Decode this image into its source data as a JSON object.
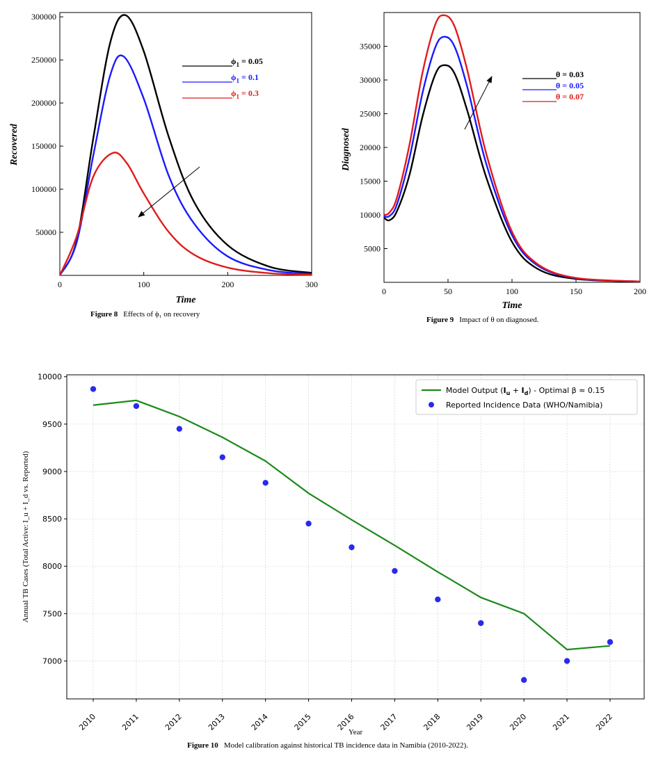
{
  "figures": {
    "fig8": {
      "caption_label": "Figure 8",
      "caption_text": "Effects of ϕ₁ on recovery"
    },
    "fig9": {
      "caption_label": "Figure 9",
      "caption_text": "Impact of θ on diagnosed."
    },
    "fig10": {
      "caption_label": "Figure 10",
      "caption_text": "Model calibration against historical TB incidence data in Namibia (2010-2022)."
    }
  },
  "chart_data": [
    {
      "id": "fig8",
      "type": "line",
      "xlabel": "Time",
      "ylabel": "Recovered",
      "xlim": [
        0,
        300
      ],
      "ylim": [
        0,
        305000
      ],
      "xticks": [
        0,
        100,
        200,
        300
      ],
      "yticks": [
        50000,
        100000,
        150000,
        200000,
        250000,
        300000
      ],
      "grid": false,
      "legend_position": "top-right",
      "annotation": "arrow pointing toward lower values as ϕ1 increases",
      "series": [
        {
          "name": "ϕ1 = 0.05",
          "color": "#000000",
          "peak_x": 78,
          "peak_y": 302000,
          "x": [
            0,
            20,
            40,
            60,
            78,
            100,
            130,
            160,
            200,
            250,
            300
          ],
          "y": [
            0,
            40000,
            160000,
            270000,
            302000,
            260000,
            160000,
            85000,
            35000,
            10000,
            3000
          ]
        },
        {
          "name": "ϕ1 = 0.1",
          "color": "#1a1aff",
          "x": [
            0,
            20,
            40,
            60,
            76,
            100,
            130,
            160,
            200,
            250,
            300
          ],
          "y": [
            0,
            38000,
            140000,
            232000,
            254000,
            205000,
            115000,
            60000,
            22000,
            6000,
            1500
          ]
        },
        {
          "name": "ϕ1 = 0.3",
          "color": "#e01b1b",
          "x": [
            0,
            20,
            40,
            63,
            80,
            100,
            130,
            160,
            200,
            250,
            300
          ],
          "y": [
            0,
            45000,
            115000,
            142000,
            130000,
            95000,
            50000,
            24000,
            9000,
            2500,
            700
          ]
        }
      ]
    },
    {
      "id": "fig9",
      "type": "line",
      "xlabel": "Time",
      "ylabel": "Diagnosed",
      "xlim": [
        0,
        200
      ],
      "ylim": [
        0,
        40000
      ],
      "xticks": [
        0,
        50,
        100,
        150,
        200
      ],
      "yticks": [
        5000,
        10000,
        15000,
        20000,
        25000,
        30000,
        35000
      ],
      "grid": false,
      "legend_position": "top-right",
      "annotation": "arrow pointing toward higher values as θ increases",
      "series": [
        {
          "name": "θ = 0.03",
          "color": "#000000",
          "x": [
            0,
            4,
            10,
            20,
            30,
            40,
            47,
            55,
            65,
            80,
            100,
            120,
            150,
            200
          ],
          "y": [
            9600,
            9200,
            10500,
            16000,
            24500,
            30800,
            32200,
            31000,
            25500,
            15500,
            6000,
            2000,
            500,
            100
          ]
        },
        {
          "name": "θ = 0.05",
          "color": "#1a1aff",
          "x": [
            0,
            4,
            10,
            20,
            30,
            40,
            47,
            55,
            65,
            80,
            100,
            120,
            150,
            200
          ],
          "y": [
            9800,
            9800,
            11500,
            18500,
            28000,
            34800,
            36400,
            35000,
            29000,
            17500,
            7000,
            2500,
            600,
            120
          ]
        },
        {
          "name": "θ = 0.07",
          "color": "#e01b1b",
          "x": [
            0,
            4,
            10,
            20,
            30,
            40,
            47,
            55,
            65,
            80,
            100,
            120,
            150,
            200
          ],
          "y": [
            10000,
            10300,
            12500,
            20500,
            31000,
            38200,
            39600,
            38000,
            31500,
            19000,
            7500,
            2700,
            650,
            130
          ]
        }
      ]
    },
    {
      "id": "fig10",
      "type": "line",
      "xlabel": "Year",
      "ylabel": "Annual TB Cases (Total Active: I_u + I_d vs. Reported)",
      "ylim": [
        6600,
        10020
      ],
      "yticks": [
        7000,
        7500,
        8000,
        8500,
        9000,
        9500,
        10000
      ],
      "grid": true,
      "legend_position": "top-right",
      "categories": [
        2010,
        2011,
        2012,
        2013,
        2014,
        2015,
        2016,
        2017,
        2018,
        2019,
        2020,
        2021,
        2022
      ],
      "series": [
        {
          "name": "Model Output (Iu + Id) - Optimal β ≈ 0.15",
          "type": "line",
          "color": "#1a8a1a",
          "values": [
            9700,
            9750,
            9580,
            9360,
            9110,
            8770,
            8490,
            8220,
            7940,
            7670,
            7500,
            7120,
            7160
          ]
        },
        {
          "name": "Reported Incidence Data (WHO/Namibia)",
          "type": "scatter",
          "color": "#2a2aee",
          "values": [
            9870,
            9690,
            9450,
            9150,
            8880,
            8450,
            8200,
            7950,
            7650,
            7400,
            6800,
            7000,
            7200
          ]
        }
      ]
    }
  ],
  "legend_text": {
    "fig8": [
      {
        "sym": "ϕ",
        "sub": "1",
        "eq": " = 0.05"
      },
      {
        "sym": "ϕ",
        "sub": "1",
        "eq": " = 0.1"
      },
      {
        "sym": "ϕ",
        "sub": "1",
        "eq": " = 0.3"
      }
    ],
    "fig9": [
      "θ = 0.03",
      "θ = 0.05",
      "θ = 0.07"
    ],
    "fig10_model_prefix": "Model Output (",
    "fig10_model_mid": "I",
    "fig10_model_sub_u": "u",
    "fig10_model_plus": " + ",
    "fig10_model_sub_d": "d",
    "fig10_model_suffix": ") - Optimal β ≈ 0.15",
    "fig10_data": "Reported Incidence Data (WHO/Namibia)"
  }
}
